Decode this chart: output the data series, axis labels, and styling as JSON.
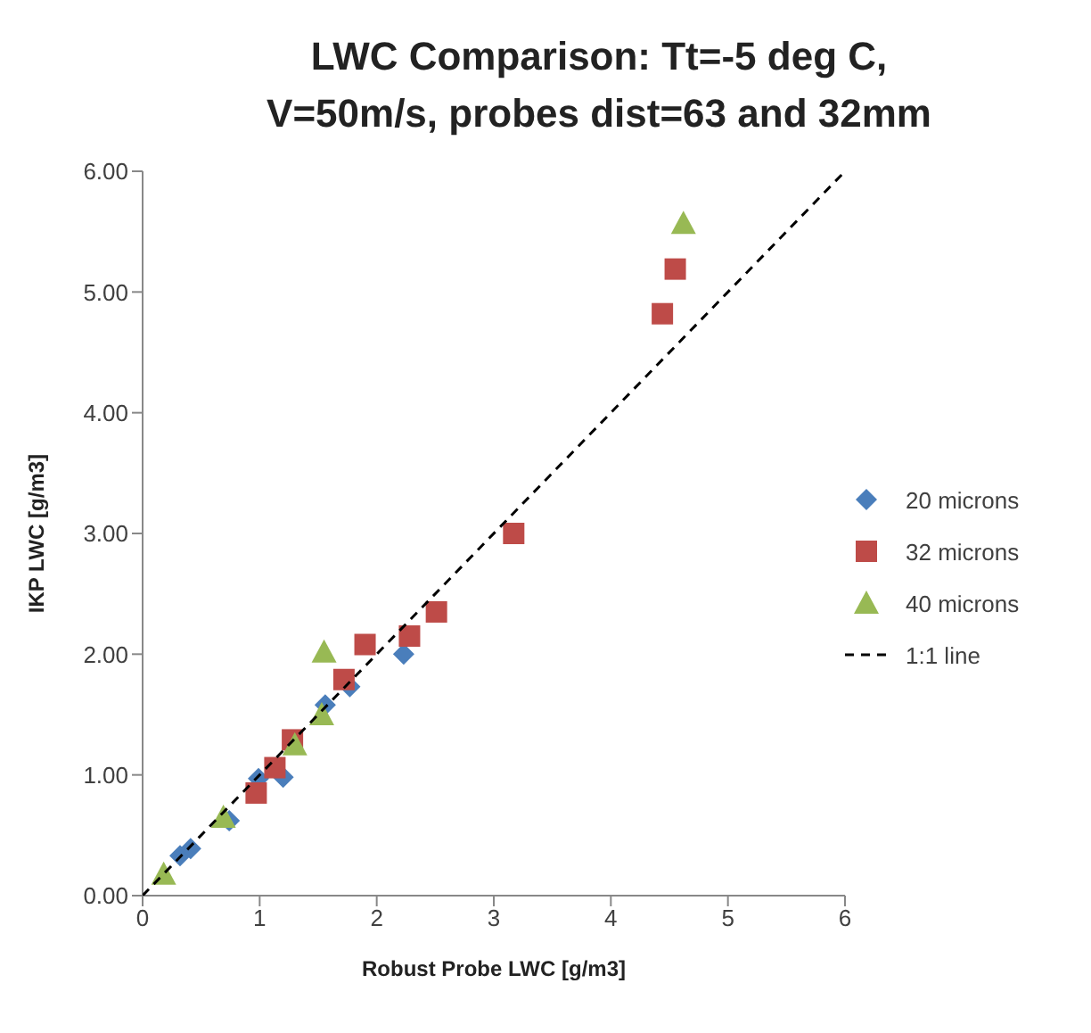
{
  "chart_data": {
    "type": "scatter",
    "title": "LWC Comparison: Tt=-5 deg C,\nV=50m/s, probes dist=63 and 32mm",
    "xlabel": "Robust Probe LWC [g/m3]",
    "ylabel": "IKP LWC [g/m3]",
    "xlim": [
      0,
      6
    ],
    "xticks": [
      0,
      1,
      2,
      3,
      4,
      5,
      6
    ],
    "ylim": [
      0,
      6
    ],
    "yticks": [
      {
        "value": 0,
        "label": "0.00"
      },
      {
        "value": 1,
        "label": "1.00"
      },
      {
        "value": 2,
        "label": "2.00"
      },
      {
        "value": 3,
        "label": "3.00"
      },
      {
        "value": 4,
        "label": "4.00"
      },
      {
        "value": 5,
        "label": "5.00"
      },
      {
        "value": 6,
        "label": "6.00"
      }
    ],
    "grid": false,
    "legend": "right",
    "series": [
      {
        "name": "20 microns",
        "color": "#4a7ebb",
        "marker": "diamond",
        "x": [
          0.32,
          0.41,
          0.74,
          0.99,
          1.2,
          1.56,
          1.77,
          2.23
        ],
        "values": [
          0.33,
          0.39,
          0.62,
          0.97,
          0.98,
          1.58,
          1.73,
          2.0
        ]
      },
      {
        "name": "32 microns",
        "color": "#be4b48",
        "marker": "square",
        "x": [
          0.97,
          1.13,
          1.28,
          1.72,
          1.9,
          2.28,
          2.51,
          3.17,
          4.44,
          4.55
        ],
        "values": [
          0.85,
          1.06,
          1.29,
          1.79,
          2.08,
          2.15,
          2.35,
          3.0,
          4.82,
          5.19
        ]
      },
      {
        "name": "40 microns",
        "color": "#98b954",
        "marker": "triangle",
        "x": [
          0.18,
          0.69,
          1.3,
          1.53,
          1.55,
          4.62
        ],
        "values": [
          0.18,
          0.65,
          1.25,
          1.5,
          2.02,
          5.57
        ]
      },
      {
        "name": "1:1 line",
        "type": "line",
        "color": "#000000",
        "marker": "none",
        "line_style": "dashed",
        "x": [
          0,
          6
        ],
        "values": [
          0,
          6
        ]
      }
    ]
  }
}
